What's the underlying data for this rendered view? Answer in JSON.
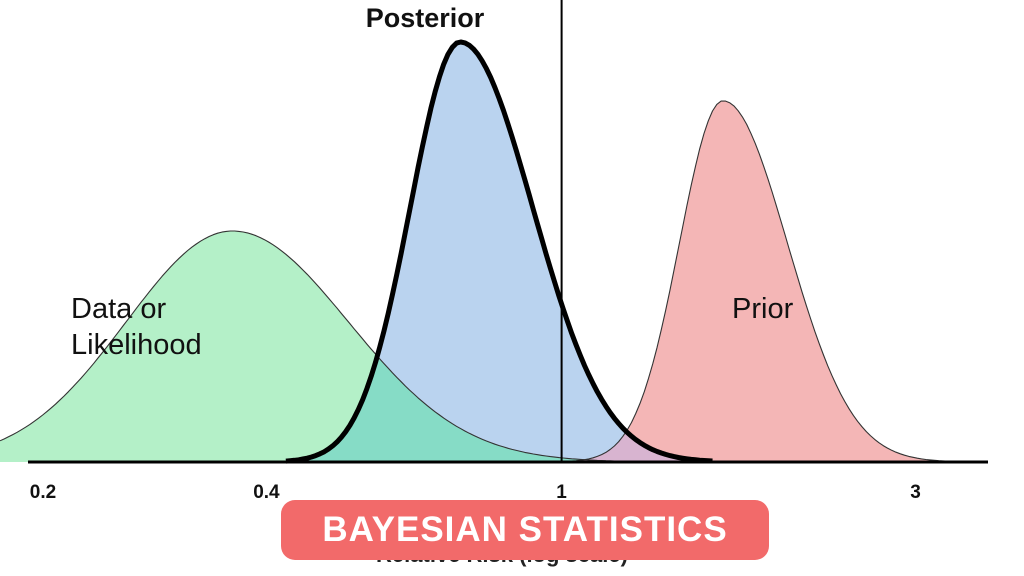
{
  "banner": {
    "text": "BAYESIAN STATISTICS",
    "color": "#f26a6a"
  },
  "chart_data": {
    "type": "area",
    "xscale": "log",
    "xlim": [
      0.175,
      4.2
    ],
    "xticks": [
      {
        "value": 0.2,
        "label": "0.2"
      },
      {
        "value": 0.4,
        "label": "0.4"
      },
      {
        "value": 1,
        "label": "1"
      },
      {
        "value": 3,
        "label": "3"
      }
    ],
    "xlabel": "Relative Risk (log scale)",
    "reference_line": 1,
    "grid": false,
    "series": [
      {
        "name": "Data or Likelihood",
        "label_lines": [
          "Data or",
          "Likelihood"
        ],
        "color": "#b4f0c8",
        "edge": "#333333",
        "peak": 0.36,
        "peak_height": 0.55,
        "sigma_left": 0.33,
        "sigma_right": 0.36
      },
      {
        "name": "Posterior",
        "label_lines": [
          "Posterior"
        ],
        "color": "#bad3ef",
        "edge": "#000000",
        "peak": 0.73,
        "peak_height": 1.0,
        "sigma_left": 0.155,
        "sigma_right": 0.225
      },
      {
        "name": "Prior",
        "label_lines": [
          "Prior"
        ],
        "color": "#f4b6b6",
        "edge": "#333333",
        "peak": 1.65,
        "peak_height": 0.86,
        "sigma_left": 0.135,
        "sigma_right": 0.2
      }
    ],
    "overlap_colors": {
      "likelihood_posterior": "#86dcc6",
      "posterior_prior": "#d8b4d0"
    }
  }
}
